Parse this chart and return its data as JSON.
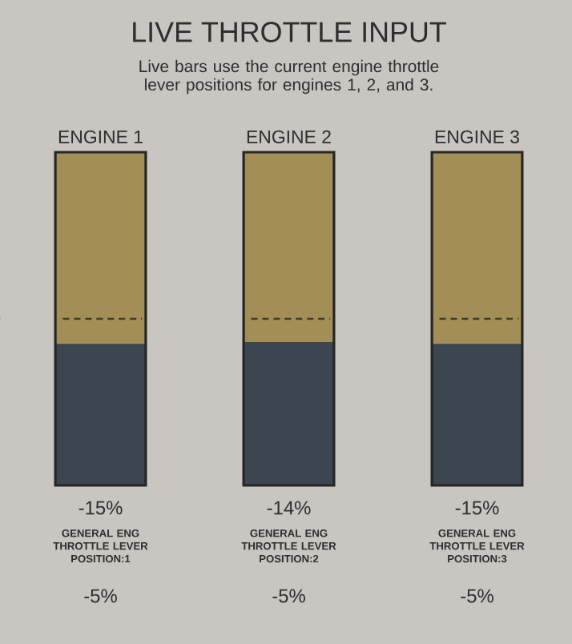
{
  "chart_data": {
    "type": "other",
    "title": "LIVE THROTTLE INPUT",
    "subtitle": "Live bars use the current engine throttle lever positions for engines 1, 2, and 3.",
    "categories": [
      "ENGINE 1",
      "ENGINE 2",
      "ENGINE 3"
    ],
    "values": [
      -15,
      -14,
      -15
    ],
    "value_labels": [
      "-15%",
      "-14%",
      "-15%"
    ],
    "color": "#3b4650",
    "annotations": [
      "GENERAL ENG THROTTLE LEVER POSITION:1",
      "-5%",
      "GENERAL ENG THROTTLE LEVER POSITION:2",
      "-5%",
      "GENERAL ENG THROTTLE LEVER POSITION:3",
      "-5%"
    ]
  }
}
